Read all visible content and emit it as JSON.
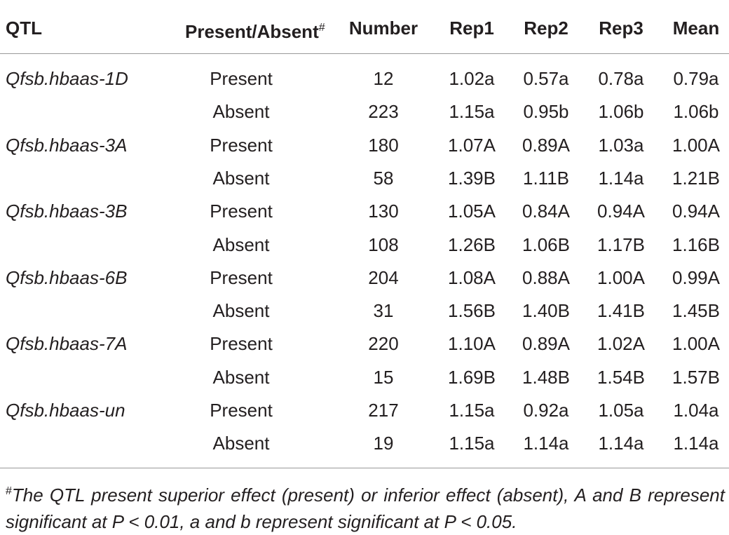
{
  "table": {
    "header": [
      "QTL",
      "Present/Absent",
      "Number",
      "Rep1",
      "Rep2",
      "Rep3",
      "Mean"
    ],
    "header_mark": "#",
    "groups": [
      {
        "qtl": "Qfsb.hbaas-1D",
        "rows": [
          [
            "Present",
            12,
            "1.02a",
            "0.57a",
            "0.78a",
            "0.79a"
          ],
          [
            "Absent",
            223,
            "1.15a",
            "0.95b",
            "1.06b",
            "1.06b"
          ]
        ]
      },
      {
        "qtl": "Qfsb.hbaas-3A",
        "rows": [
          [
            "Present",
            180,
            "1.07A",
            "0.89A",
            "1.03a",
            "1.00A"
          ],
          [
            "Absent",
            58,
            "1.39B",
            "1.11B",
            "1.14a",
            "1.21B"
          ]
        ]
      },
      {
        "qtl": "Qfsb.hbaas-3B",
        "rows": [
          [
            "Present",
            130,
            "1.05A",
            "0.84A",
            "0.94A",
            "0.94A"
          ],
          [
            "Absent",
            108,
            "1.26B",
            "1.06B",
            "1.17B",
            "1.16B"
          ]
        ]
      },
      {
        "qtl": "Qfsb.hbaas-6B",
        "rows": [
          [
            "Present",
            204,
            "1.08A",
            "0.88A",
            "1.00A",
            "0.99A"
          ],
          [
            "Absent",
            31,
            "1.56B",
            "1.40B",
            "1.41B",
            "1.45B"
          ]
        ]
      },
      {
        "qtl": "Qfsb.hbaas-7A",
        "rows": [
          [
            "Present",
            220,
            "1.10A",
            "0.89A",
            "1.02A",
            "1.00A"
          ],
          [
            "Absent",
            15,
            "1.69B",
            "1.48B",
            "1.54B",
            "1.57B"
          ]
        ]
      },
      {
        "qtl": "Qfsb.hbaas-un",
        "rows": [
          [
            "Present",
            217,
            "1.15a",
            "0.92a",
            "1.05a",
            "1.04a"
          ],
          [
            "Absent",
            19,
            "1.15a",
            "1.14a",
            "1.14a",
            "1.14a"
          ]
        ]
      }
    ]
  },
  "footnote": {
    "mark": "#",
    "text": "The QTL present superior effect (present) or inferior effect (absent), A and B represent significant at P < 0.01, a and b represent significant at P < 0.05."
  }
}
